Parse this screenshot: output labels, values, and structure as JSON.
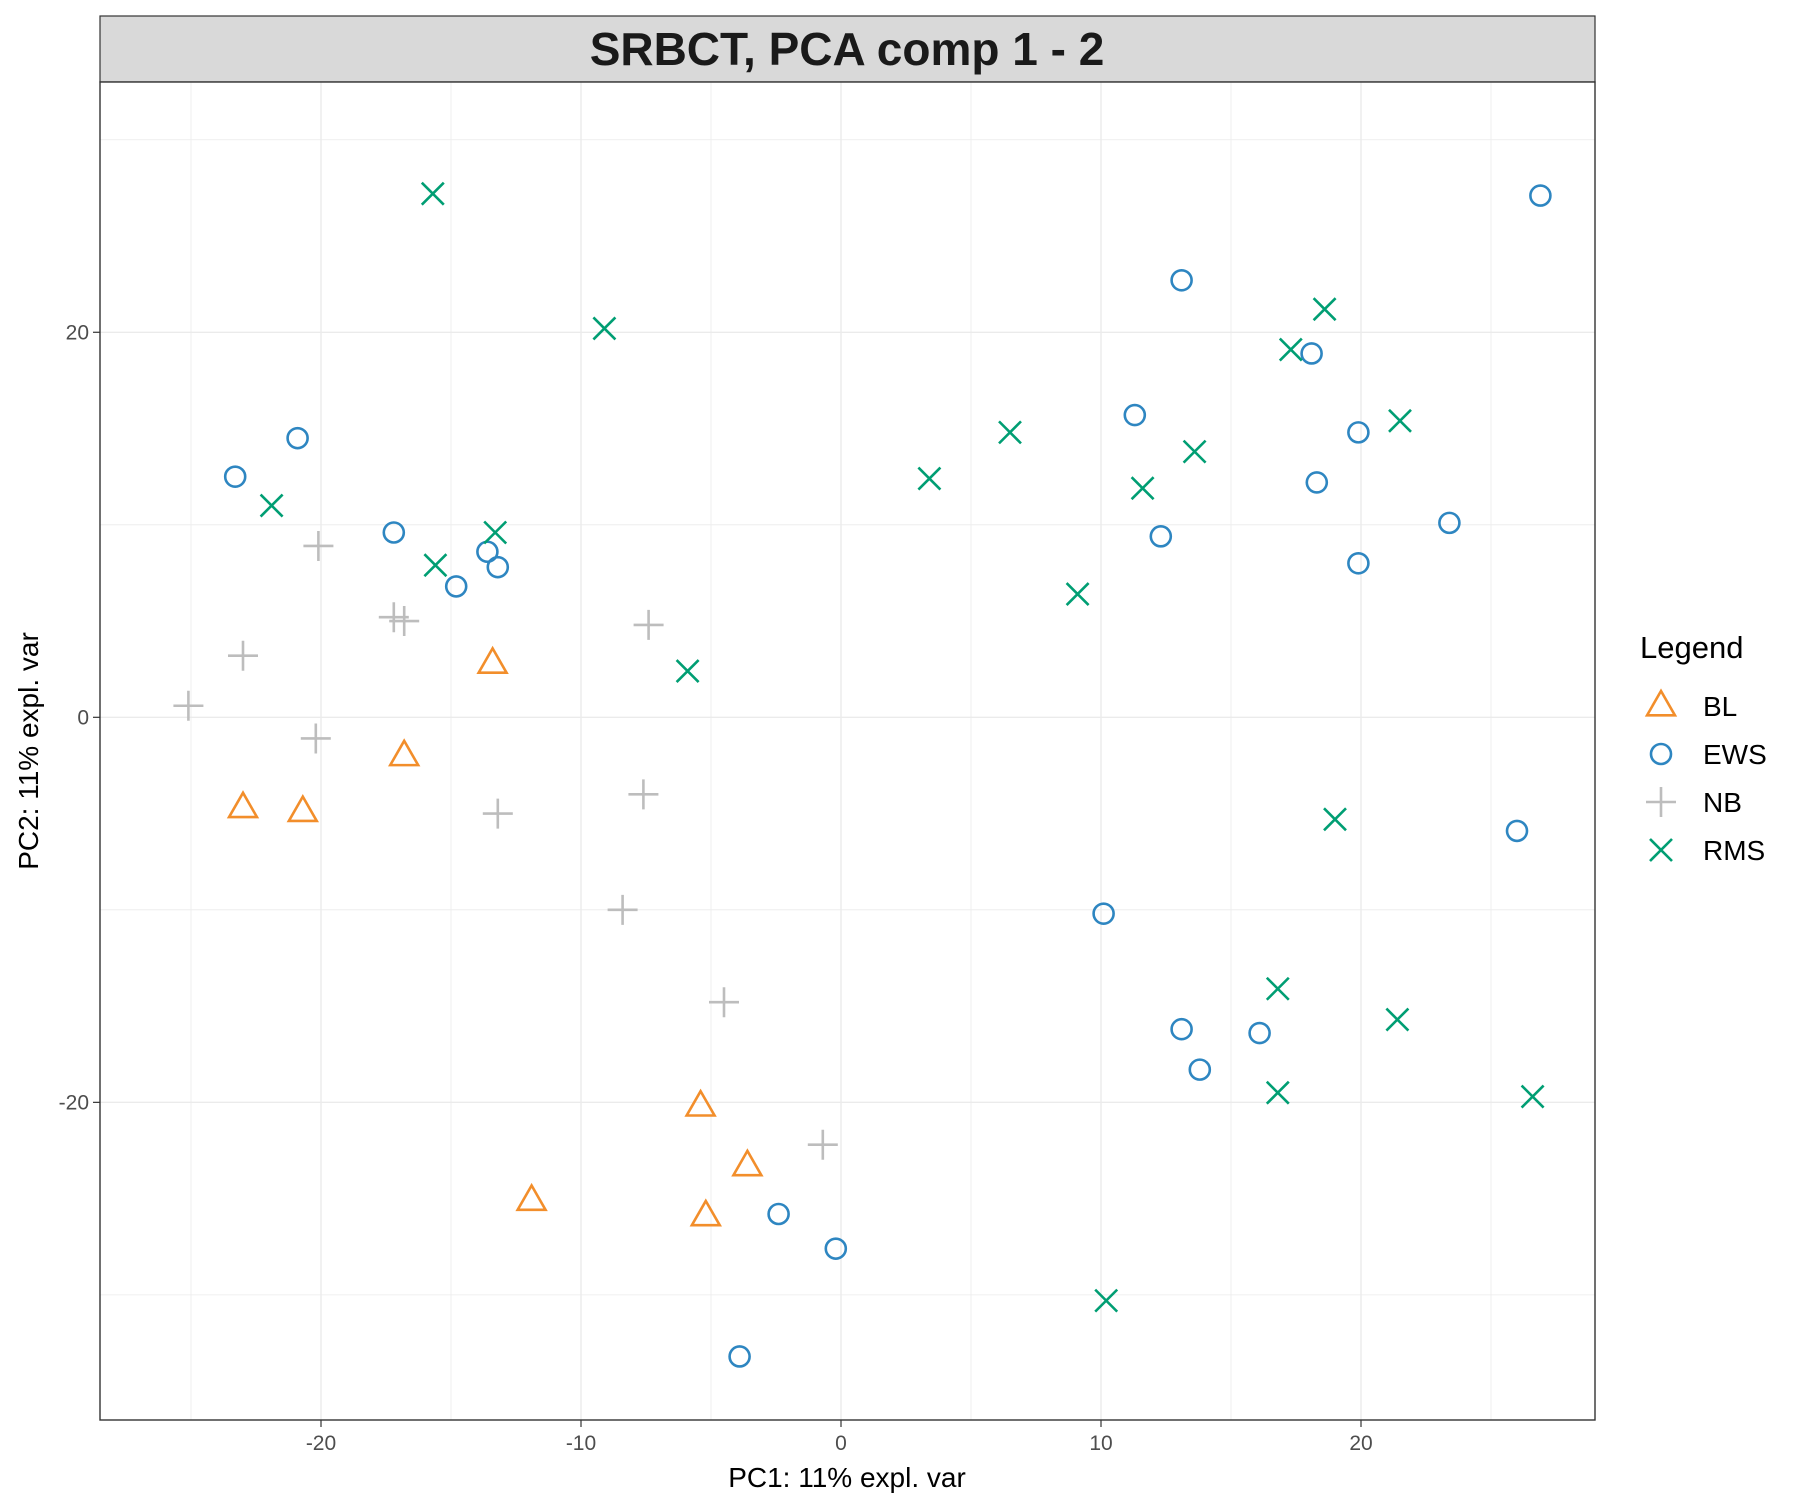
{
  "chart_data": {
    "type": "scatter",
    "title": "SRBCT, PCA comp 1 - 2",
    "xlabel": "PC1: 11% expl. var",
    "ylabel": "PC2: 11% expl. var",
    "xlim": [
      -28.5,
      29
    ],
    "ylim": [
      -36.5,
      33
    ],
    "xticks": [
      -20,
      -10,
      0,
      10,
      20
    ],
    "yticks": [
      -20,
      0,
      20
    ],
    "grid": true,
    "legend": {
      "title": "Legend",
      "position": "right",
      "entries": [
        "BL",
        "EWS",
        "NB",
        "RMS"
      ]
    },
    "series": [
      {
        "name": "BL",
        "shape": "triangle-open",
        "color": "#f28e2b",
        "points": [
          [
            -13.4,
            2.8
          ],
          [
            -16.8,
            -2.0
          ],
          [
            -23.0,
            -4.7
          ],
          [
            -20.7,
            -4.9
          ],
          [
            -5.4,
            -20.2
          ],
          [
            -3.6,
            -23.3
          ],
          [
            -11.9,
            -25.1
          ],
          [
            -5.2,
            -25.9
          ]
        ]
      },
      {
        "name": "EWS",
        "shape": "circle-open",
        "color": "#2e86c1",
        "points": [
          [
            -23.3,
            12.5
          ],
          [
            -20.9,
            14.5
          ],
          [
            -17.2,
            9.6
          ],
          [
            -13.6,
            8.6
          ],
          [
            -13.2,
            7.8
          ],
          [
            -14.8,
            6.8
          ],
          [
            13.1,
            22.7
          ],
          [
            26.9,
            27.1
          ],
          [
            18.1,
            18.9
          ],
          [
            11.3,
            15.7
          ],
          [
            19.9,
            14.8
          ],
          [
            18.3,
            12.2
          ],
          [
            12.3,
            9.4
          ],
          [
            23.4,
            10.1
          ],
          [
            19.9,
            8.0
          ],
          [
            26.0,
            -5.9
          ],
          [
            10.1,
            -10.2
          ],
          [
            13.1,
            -16.2
          ],
          [
            16.1,
            -16.4
          ],
          [
            13.8,
            -18.3
          ],
          [
            -2.4,
            -25.8
          ],
          [
            -0.2,
            -27.6
          ],
          [
            -3.9,
            -33.2
          ]
        ]
      },
      {
        "name": "NB",
        "shape": "plus",
        "color": "#bdbdbd",
        "points": [
          [
            -25.1,
            0.6
          ],
          [
            -23.0,
            3.2
          ],
          [
            -20.1,
            8.9
          ],
          [
            -17.2,
            5.2
          ],
          [
            -16.8,
            5.0
          ],
          [
            -20.2,
            -1.1
          ],
          [
            -13.2,
            -5.0
          ],
          [
            -7.4,
            4.8
          ],
          [
            -7.6,
            -4.0
          ],
          [
            -8.4,
            -10.0
          ],
          [
            -4.5,
            -14.8
          ],
          [
            -0.7,
            -22.2
          ]
        ]
      },
      {
        "name": "RMS",
        "shape": "x",
        "color": "#009e73",
        "points": [
          [
            -15.7,
            27.2
          ],
          [
            -9.1,
            20.2
          ],
          [
            -21.9,
            11.0
          ],
          [
            -13.3,
            9.6
          ],
          [
            -15.6,
            7.9
          ],
          [
            -5.9,
            2.4
          ],
          [
            3.4,
            12.4
          ],
          [
            6.5,
            14.8
          ],
          [
            9.1,
            6.4
          ],
          [
            11.6,
            11.9
          ],
          [
            13.6,
            13.8
          ],
          [
            17.3,
            19.1
          ],
          [
            18.6,
            21.2
          ],
          [
            21.5,
            15.4
          ],
          [
            19.0,
            -5.3
          ],
          [
            16.8,
            -14.1
          ],
          [
            21.4,
            -15.7
          ],
          [
            16.8,
            -19.5
          ],
          [
            26.6,
            -19.7
          ],
          [
            10.2,
            -30.3
          ]
        ]
      }
    ]
  }
}
